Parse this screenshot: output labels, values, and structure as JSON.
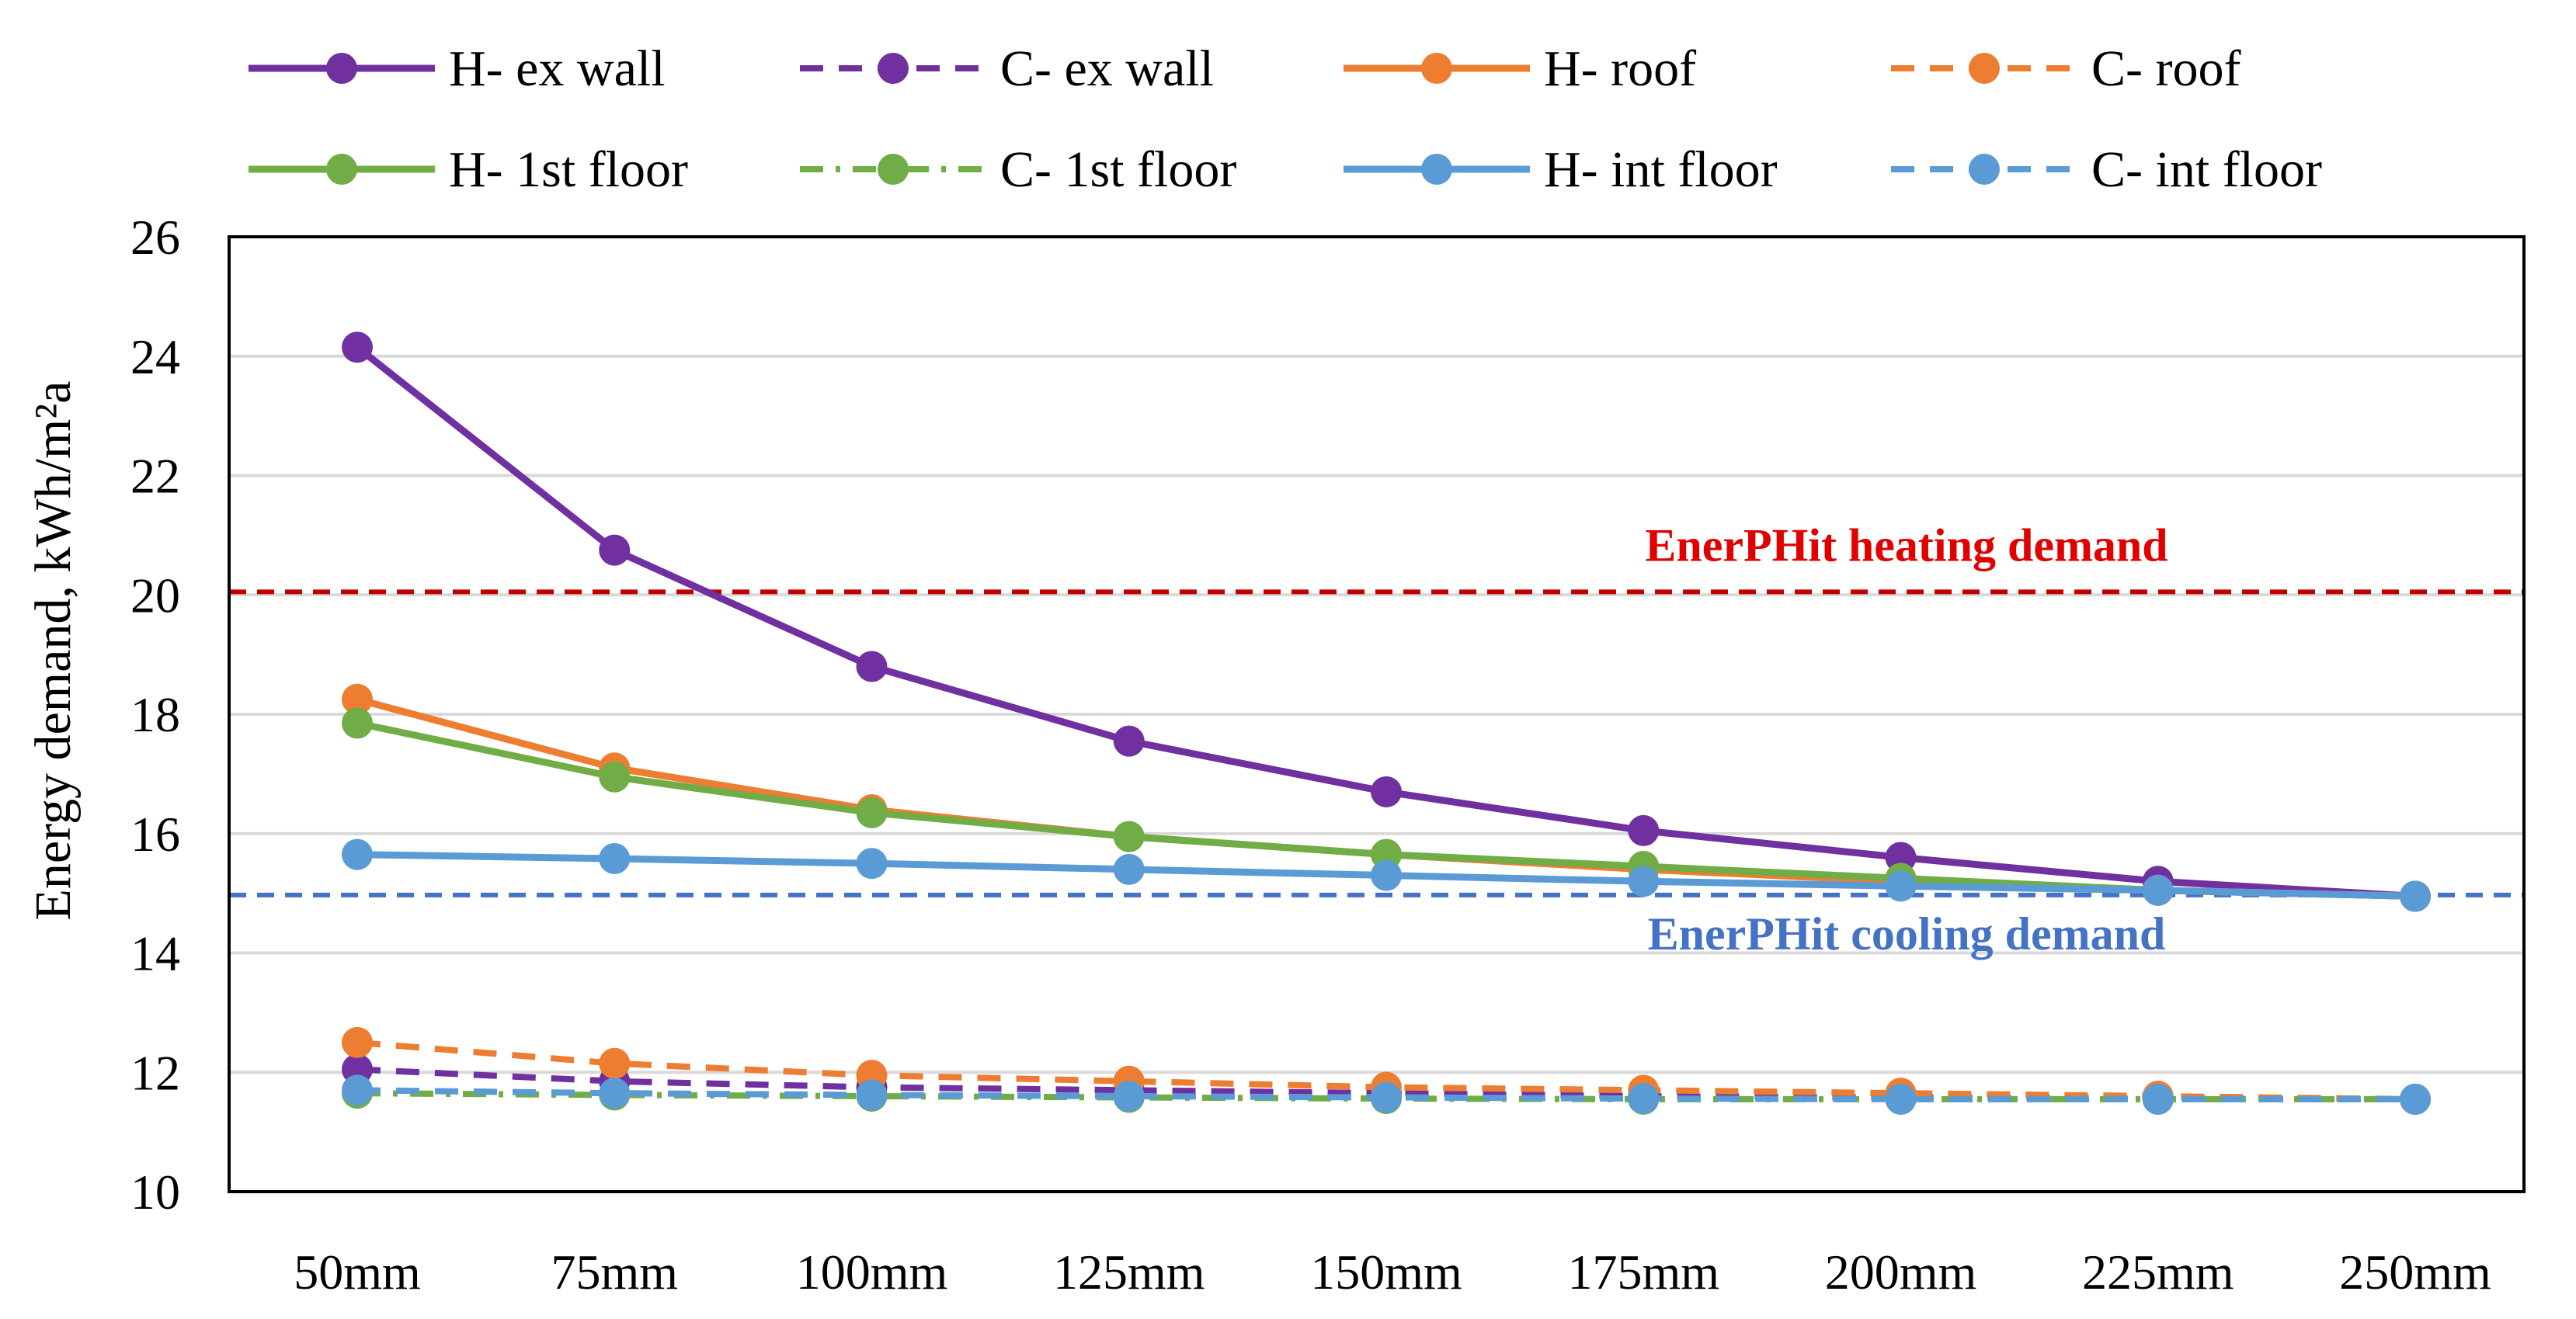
{
  "chart_data": {
    "type": "line",
    "title": "",
    "xlabel": "",
    "ylabel": "Energy demand, kWh/m²a",
    "ylim": [
      10,
      26
    ],
    "yticks": [
      10,
      12,
      14,
      16,
      18,
      20,
      22,
      24,
      26
    ],
    "categories": [
      "50mm",
      "75mm",
      "100mm",
      "125mm",
      "150mm",
      "175mm",
      "200mm",
      "225mm",
      "250mm"
    ],
    "grid": true,
    "legend_position": "top",
    "series": [
      {
        "name": "H- ex wall",
        "style": "solid",
        "color": "#7030a0",
        "values": [
          24.15,
          20.75,
          18.8,
          17.55,
          16.7,
          16.05,
          15.6,
          15.2,
          14.95
        ]
      },
      {
        "name": "C- ex wall",
        "style": "dashed",
        "color": "#7030a0",
        "values": [
          12.05,
          11.85,
          11.75,
          11.7,
          11.65,
          11.6,
          11.58,
          11.56,
          11.55
        ]
      },
      {
        "name": "H- roof",
        "style": "solid",
        "color": "#ed7d31",
        "values": [
          18.25,
          17.1,
          16.4,
          15.95,
          15.65,
          15.4,
          15.2,
          15.05,
          14.95
        ]
      },
      {
        "name": "C- roof",
        "style": "dashed",
        "color": "#ed7d31",
        "values": [
          12.5,
          12.15,
          11.95,
          11.85,
          11.75,
          11.7,
          11.65,
          11.6,
          11.55
        ]
      },
      {
        "name": "H- 1st floor",
        "style": "solid",
        "color": "#70ad47",
        "values": [
          17.85,
          16.95,
          16.35,
          15.95,
          15.65,
          15.45,
          15.25,
          15.05,
          14.95
        ]
      },
      {
        "name": "C- 1st floor",
        "style": "dashdot",
        "color": "#70ad47",
        "values": [
          11.65,
          11.62,
          11.6,
          11.58,
          11.56,
          11.55,
          11.55,
          11.55,
          11.55
        ]
      },
      {
        "name": "H- int floor",
        "style": "solid",
        "color": "#5b9bd5",
        "values": [
          15.65,
          15.58,
          15.5,
          15.4,
          15.3,
          15.2,
          15.12,
          15.05,
          14.95
        ]
      },
      {
        "name": "C- int floor",
        "style": "dashed",
        "color": "#5b9bd5",
        "values": [
          11.7,
          11.65,
          11.62,
          11.6,
          11.58,
          11.56,
          11.55,
          11.55,
          11.55
        ]
      }
    ],
    "reference_lines": [
      {
        "label": "EnerPHit heating demand",
        "value": 20.05,
        "color": "#c00000",
        "label_color": "#e00000"
      },
      {
        "label": "EnerPHit cooling demand",
        "value": 14.97,
        "color": "#4472c4",
        "label_color": "#4472c4"
      }
    ]
  }
}
